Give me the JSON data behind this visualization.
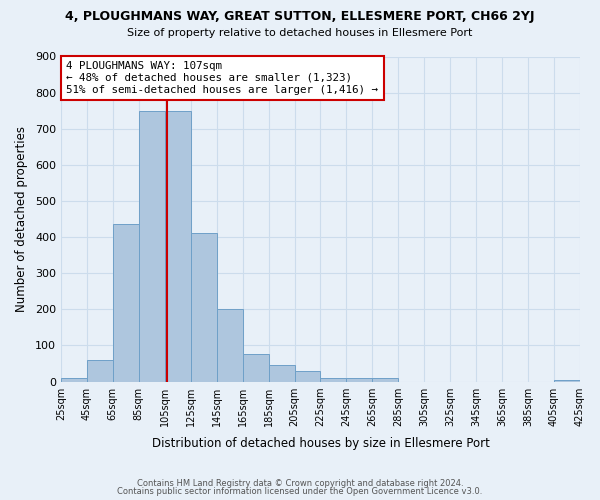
{
  "title": "4, PLOUGHMANS WAY, GREAT SUTTON, ELLESMERE PORT, CH66 2YJ",
  "subtitle": "Size of property relative to detached houses in Ellesmere Port",
  "xlabel": "Distribution of detached houses by size in Ellesmere Port",
  "ylabel": "Number of detached properties",
  "bin_edges": [
    25,
    45,
    65,
    85,
    105,
    125,
    145,
    165,
    185,
    205,
    225,
    245,
    265,
    285,
    305,
    325,
    345,
    365,
    385,
    405,
    425
  ],
  "bar_heights": [
    10,
    60,
    435,
    750,
    750,
    410,
    200,
    75,
    45,
    30,
    10,
    10,
    10,
    0,
    0,
    0,
    0,
    0,
    0,
    5
  ],
  "bar_color": "#aec6de",
  "bar_edge_color": "#6fa0c8",
  "grid_color": "#ccdcec",
  "background_color": "#e8f0f8",
  "vline_x": 107,
  "vline_color": "#cc0000",
  "annotation_text": "4 PLOUGHMANS WAY: 107sqm\n← 48% of detached houses are smaller (1,323)\n51% of semi-detached houses are larger (1,416) →",
  "annotation_box_color": "#ffffff",
  "annotation_border_color": "#cc0000",
  "ylim": [
    0,
    900
  ],
  "yticks": [
    0,
    100,
    200,
    300,
    400,
    500,
    600,
    700,
    800,
    900
  ],
  "xlim": [
    25,
    425
  ],
  "tick_labels": [
    "25sqm",
    "45sqm",
    "65sqm",
    "85sqm",
    "105sqm",
    "125sqm",
    "145sqm",
    "165sqm",
    "185sqm",
    "205sqm",
    "225sqm",
    "245sqm",
    "265sqm",
    "285sqm",
    "305sqm",
    "325sqm",
    "345sqm",
    "365sqm",
    "385sqm",
    "405sqm",
    "425sqm"
  ],
  "footer_line1": "Contains HM Land Registry data © Crown copyright and database right 2024.",
  "footer_line2": "Contains public sector information licensed under the Open Government Licence v3.0."
}
